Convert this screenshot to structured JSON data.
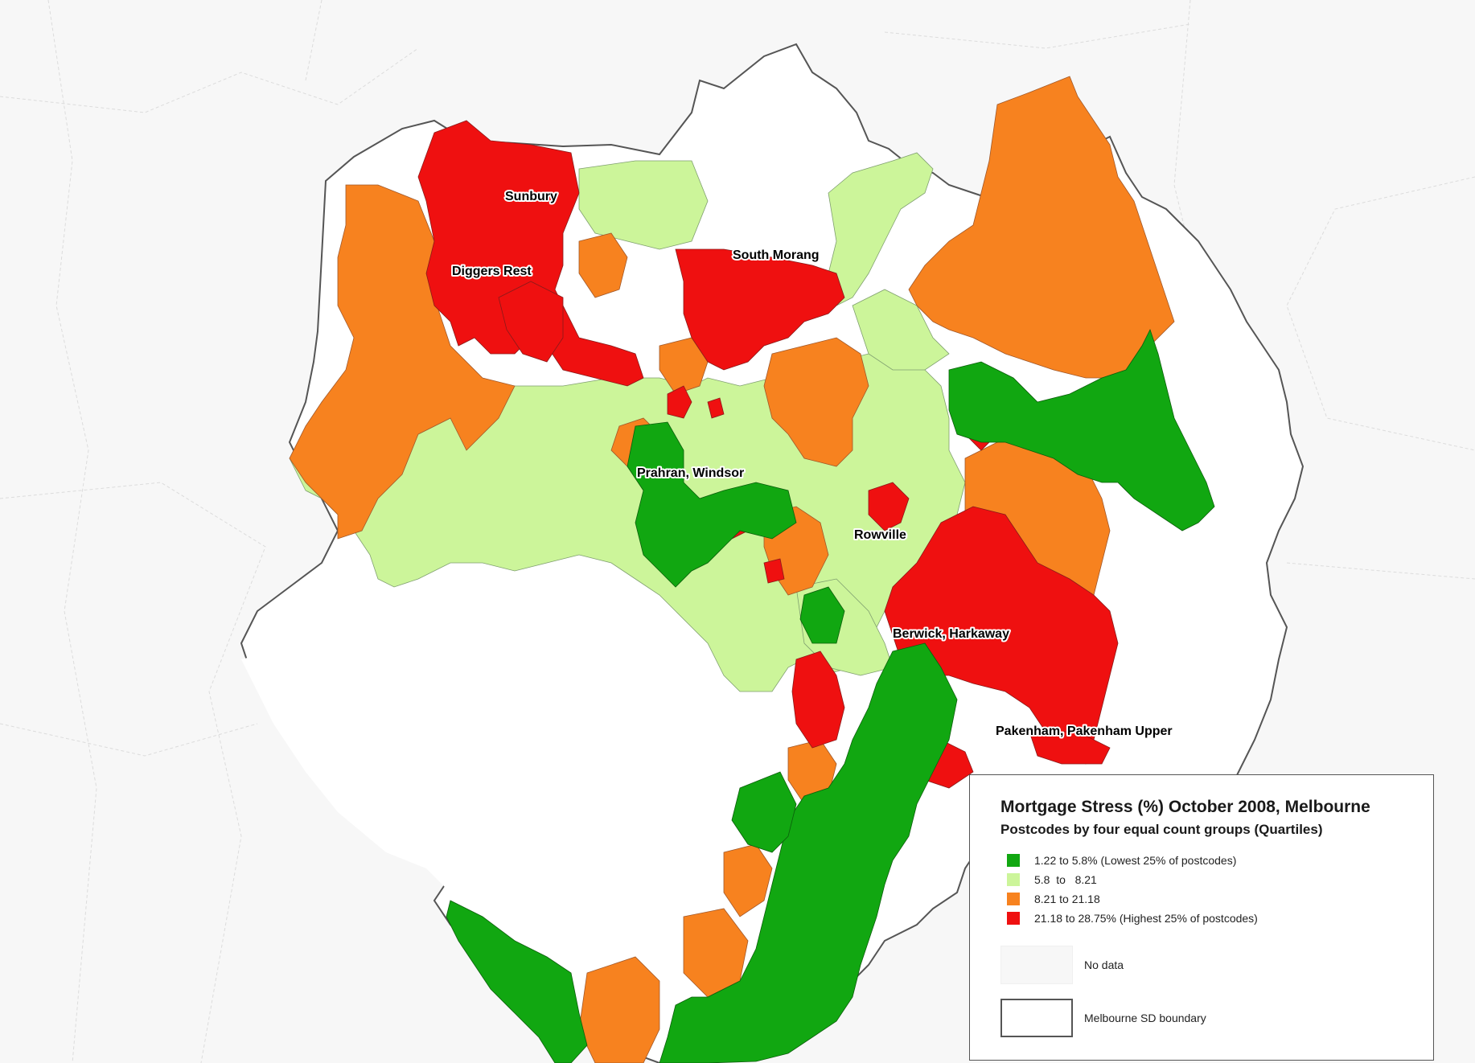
{
  "legend": {
    "title": "Mortgage Stress (%) October 2008, Melbourne",
    "subtitle": "Postcodes by four equal count groups (Quartiles)",
    "classes": [
      {
        "label": "1.22 to 5.8% (Lowest 25% of postcodes)",
        "color": "#11a711"
      },
      {
        "label": "5.8  to   8.21",
        "color": "#ccf59a"
      },
      {
        "label": "8.21 to 21.18",
        "color": "#f7821f"
      },
      {
        "label": "21.18 to 28.75% (Highest 25% of postcodes)",
        "color": "#ef1010"
      }
    ],
    "no_data_label": "No data",
    "boundary_label": "Melbourne SD boundary"
  },
  "place_labels": [
    {
      "text": "Sunbury"
    },
    {
      "text": "Diggers Rest"
    },
    {
      "text": "South Morang"
    },
    {
      "text": "Prahran, Windsor"
    },
    {
      "text": "Rowville"
    },
    {
      "text": "Berwick, Harkaway"
    },
    {
      "text": "Pakenham, Pakenham Upper"
    }
  ],
  "colors": {
    "water": "#ffffff",
    "background": "#f7f7f7",
    "boundary": "#555555"
  }
}
